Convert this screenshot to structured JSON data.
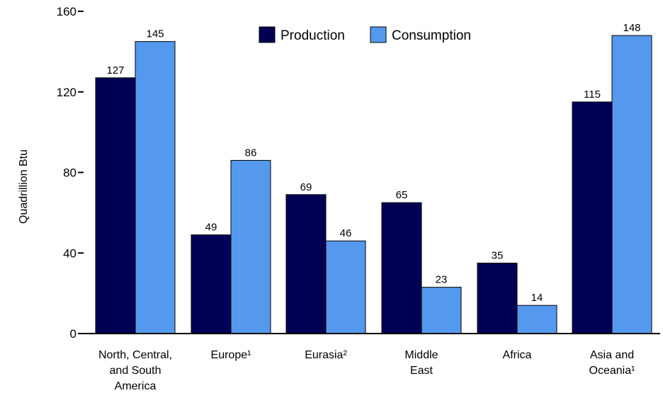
{
  "chart_data": {
    "type": "bar",
    "title": "",
    "xlabel": "",
    "ylabel": "Quadrillion Btu",
    "ylim": [
      0,
      160
    ],
    "yticks": [
      0,
      40,
      80,
      120,
      160
    ],
    "grid": false,
    "legend": "top-center",
    "categories": [
      [
        "North, Central,",
        "and South",
        "America"
      ],
      [
        "Europe¹"
      ],
      [
        "Eurasia²"
      ],
      [
        "Middle",
        "East"
      ],
      [
        "Africa"
      ],
      [
        "Asia and",
        "Oceania¹"
      ]
    ],
    "series": [
      {
        "name": "Production",
        "color": "#000055",
        "values": [
          127,
          49,
          69,
          65,
          35,
          115
        ]
      },
      {
        "name": "Consumption",
        "color": "#5599ee",
        "values": [
          145,
          86,
          46,
          23,
          14,
          148
        ]
      }
    ]
  }
}
